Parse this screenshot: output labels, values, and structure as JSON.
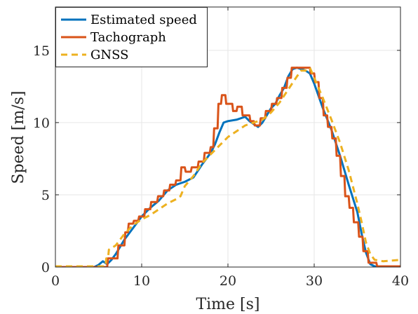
{
  "chart_data": {
    "type": "line",
    "xlabel": "Time [s]",
    "ylabel": "Speed [m/s]",
    "xlim": [
      0,
      40
    ],
    "ylim": [
      0,
      18
    ],
    "xticks": [
      0,
      10,
      20,
      30,
      40
    ],
    "yticks": [
      0,
      5,
      10,
      15
    ],
    "grid": true,
    "legend_position": "top-left",
    "series": [
      {
        "name": "Estimated speed",
        "color": "#0072BD",
        "style": "solid",
        "points": [
          [
            0,
            0
          ],
          [
            4.5,
            0
          ],
          [
            5,
            0.15
          ],
          [
            5.5,
            0.4
          ],
          [
            6,
            0.2
          ],
          [
            6.5,
            0.5
          ],
          [
            7,
            0.9
          ],
          [
            8,
            1.9
          ],
          [
            9,
            2.7
          ],
          [
            10,
            3.5
          ],
          [
            11,
            4.1
          ],
          [
            12,
            4.6
          ],
          [
            13,
            5.3
          ],
          [
            14,
            5.7
          ],
          [
            15,
            5.9
          ],
          [
            16,
            6.2
          ],
          [
            17,
            7.1
          ],
          [
            18,
            7.9
          ],
          [
            18.5,
            8.5
          ],
          [
            19,
            9.3
          ],
          [
            19.5,
            10
          ],
          [
            20,
            10.1
          ],
          [
            21,
            10.2
          ],
          [
            22,
            10.4
          ],
          [
            22.5,
            10.1
          ],
          [
            23,
            9.9
          ],
          [
            23.5,
            9.7
          ],
          [
            24,
            10
          ],
          [
            24.5,
            10.5
          ],
          [
            25,
            11
          ],
          [
            25.5,
            11.3
          ],
          [
            26,
            11.9
          ],
          [
            26.5,
            12.4
          ],
          [
            27,
            13.2
          ],
          [
            27.5,
            13.7
          ],
          [
            28,
            13.8
          ],
          [
            29,
            13.6
          ],
          [
            29.5,
            13.4
          ],
          [
            30,
            12.7
          ],
          [
            31,
            11
          ],
          [
            32,
            9.5
          ],
          [
            33,
            7.7
          ],
          [
            34,
            5.7
          ],
          [
            35,
            3.8
          ],
          [
            35.5,
            2.3
          ],
          [
            36,
            1
          ],
          [
            36.5,
            0.2
          ],
          [
            37,
            0.05
          ],
          [
            40,
            0
          ]
        ]
      },
      {
        "name": "Tachograph",
        "color": "#D95319",
        "style": "solid",
        "points": [
          [
            0,
            0
          ],
          [
            6,
            0
          ],
          [
            6.1,
            0.6
          ],
          [
            7.2,
            0.6
          ],
          [
            7.3,
            1.5
          ],
          [
            8,
            1.5
          ],
          [
            8.1,
            2.4
          ],
          [
            8.4,
            2.4
          ],
          [
            8.5,
            3
          ],
          [
            9,
            3
          ],
          [
            9.1,
            3.2
          ],
          [
            9.6,
            3.2
          ],
          [
            9.7,
            3.5
          ],
          [
            10.3,
            3.5
          ],
          [
            10.4,
            4
          ],
          [
            11,
            4
          ],
          [
            11.1,
            4.5
          ],
          [
            11.8,
            4.5
          ],
          [
            11.9,
            4.9
          ],
          [
            12.5,
            4.9
          ],
          [
            12.6,
            5.3
          ],
          [
            13.2,
            5.3
          ],
          [
            13.3,
            5.7
          ],
          [
            13.9,
            5.7
          ],
          [
            14,
            6
          ],
          [
            14.5,
            6
          ],
          [
            14.6,
            6.9
          ],
          [
            15,
            6.9
          ],
          [
            15.1,
            6.6
          ],
          [
            15.7,
            6.6
          ],
          [
            15.8,
            6.9
          ],
          [
            16.5,
            6.9
          ],
          [
            16.6,
            7.3
          ],
          [
            17.2,
            7.3
          ],
          [
            17.3,
            7.9
          ],
          [
            17.9,
            7.9
          ],
          [
            18,
            8.3
          ],
          [
            18.3,
            8.3
          ],
          [
            18.4,
            9.6
          ],
          [
            18.8,
            9.6
          ],
          [
            18.9,
            11.3
          ],
          [
            19.2,
            11.3
          ],
          [
            19.3,
            11.9
          ],
          [
            19.7,
            11.9
          ],
          [
            19.8,
            11.3
          ],
          [
            20.5,
            11.3
          ],
          [
            20.6,
            10.8
          ],
          [
            21,
            10.8
          ],
          [
            21.1,
            11.1
          ],
          [
            21.6,
            11.1
          ],
          [
            21.7,
            10.5
          ],
          [
            22.5,
            10.5
          ],
          [
            22.6,
            10.1
          ],
          [
            23,
            10.1
          ],
          [
            23.1,
            9.8
          ],
          [
            23.7,
            9.8
          ],
          [
            23.8,
            10.3
          ],
          [
            24.3,
            10.3
          ],
          [
            24.4,
            10.8
          ],
          [
            25,
            10.8
          ],
          [
            25.1,
            11.3
          ],
          [
            25.6,
            11.3
          ],
          [
            25.7,
            11.7
          ],
          [
            26.2,
            11.7
          ],
          [
            26.3,
            12.4
          ],
          [
            26.8,
            12.4
          ],
          [
            26.9,
            13.1
          ],
          [
            27.3,
            13.1
          ],
          [
            27.4,
            13.8
          ],
          [
            29.5,
            13.8
          ],
          [
            29.6,
            13.4
          ],
          [
            30,
            13.4
          ],
          [
            30.1,
            12.8
          ],
          [
            30.5,
            12.8
          ],
          [
            30.6,
            11.7
          ],
          [
            31,
            11.7
          ],
          [
            31.1,
            10.5
          ],
          [
            31.5,
            10.5
          ],
          [
            31.6,
            9.7
          ],
          [
            32,
            9.7
          ],
          [
            32.1,
            8.9
          ],
          [
            32.5,
            8.9
          ],
          [
            32.6,
            7.7
          ],
          [
            33,
            7.7
          ],
          [
            33.1,
            6.3
          ],
          [
            33.5,
            6.3
          ],
          [
            33.6,
            4.9
          ],
          [
            34,
            4.9
          ],
          [
            34.1,
            4.1
          ],
          [
            34.5,
            4.1
          ],
          [
            34.6,
            3.1
          ],
          [
            35.1,
            3.1
          ],
          [
            35.2,
            2.1
          ],
          [
            35.6,
            2.1
          ],
          [
            35.7,
            1.1
          ],
          [
            36.2,
            1.1
          ],
          [
            36.3,
            0.3
          ],
          [
            37.2,
            0.3
          ],
          [
            37.3,
            0.05
          ],
          [
            40,
            0.05
          ]
        ]
      },
      {
        "name": "GNSS",
        "color": "#EDB120",
        "style": "dashed",
        "points": [
          [
            0,
            0.05
          ],
          [
            5.8,
            0.05
          ],
          [
            5.9,
            0.6
          ],
          [
            6.1,
            0.6
          ],
          [
            6.2,
            1.2
          ],
          [
            7,
            1.5
          ],
          [
            8,
            2.3
          ],
          [
            9,
            2.9
          ],
          [
            10,
            3.3
          ],
          [
            11,
            3.6
          ],
          [
            12,
            4
          ],
          [
            13,
            4.4
          ],
          [
            14,
            4.7
          ],
          [
            14.5,
            4.9
          ],
          [
            15,
            5.6
          ],
          [
            16,
            6.3
          ],
          [
            17,
            7.2
          ],
          [
            18,
            7.8
          ],
          [
            19,
            8.4
          ],
          [
            20,
            9
          ],
          [
            21,
            9.4
          ],
          [
            22,
            9.8
          ],
          [
            23,
            10
          ],
          [
            24,
            10.2
          ],
          [
            25,
            10.7
          ],
          [
            26,
            11.4
          ],
          [
            27,
            12.3
          ],
          [
            28,
            13.2
          ],
          [
            28.5,
            13.6
          ],
          [
            29,
            13.6
          ],
          [
            29.5,
            13.8
          ],
          [
            30,
            13.1
          ],
          [
            31,
            11.7
          ],
          [
            32,
            10.2
          ],
          [
            33,
            8.6
          ],
          [
            34,
            6.7
          ],
          [
            35,
            4.4
          ],
          [
            35.5,
            3.1
          ],
          [
            36,
            1.7
          ],
          [
            36.5,
            0.9
          ],
          [
            37,
            0.5
          ],
          [
            38,
            0.4
          ],
          [
            40,
            0.5
          ]
        ]
      }
    ]
  }
}
